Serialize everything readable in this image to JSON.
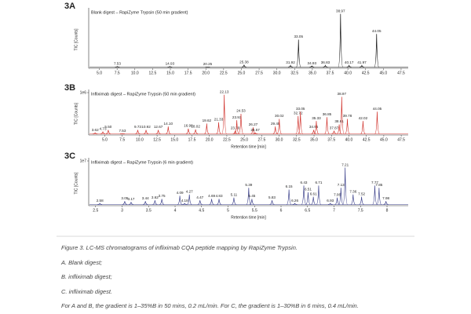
{
  "chart_data": [
    {
      "type": "line",
      "panel": "3A",
      "title": "Blank digest – RapiZyme Trypsin (50 min gradient)",
      "y_label": "TIC [Counts]",
      "color": "#111111",
      "xlim": [
        3.5,
        48.5
      ],
      "ylim": [
        0,
        1000000
      ],
      "xticks": [
        {
          "value": 5,
          "label": "5.0"
        },
        7.5,
        {
          "value": 10,
          "label": "10.0"
        },
        12.5,
        {
          "value": 15,
          "label": "15.0"
        },
        17.5,
        {
          "value": 20,
          "label": "20.0"
        },
        22.5,
        {
          "value": 25,
          "label": "25.0"
        },
        27.5,
        {
          "value": 30,
          "label": "30.0"
        },
        32.5,
        {
          "value": 35,
          "label": "35.0"
        },
        37.5,
        {
          "value": 40,
          "label": "40.0"
        },
        42.5,
        {
          "value": 45,
          "label": "45.0"
        },
        47.5
      ],
      "x": [
        7.53,
        14.93,
        20.25,
        25.38,
        31.92,
        33.05,
        34.93,
        36.83,
        38.97,
        40.17,
        41.97,
        44.05
      ],
      "values": [
        30000,
        30000,
        20000,
        60000,
        50000,
        500000,
        40000,
        50000,
        950000,
        50000,
        50000,
        600000
      ]
    },
    {
      "type": "line",
      "panel": "3B",
      "title": "Infliximab digest – RapiZyme Trypsin (50 min gradient)",
      "y_label": "TIC [Counts]",
      "x_label": "Retention time [min]",
      "color": "#d0302a",
      "xlim": [
        2.7,
        48.5
      ],
      "ylim": [
        0,
        1000000
      ],
      "yticks": [
        {
          "value": 1000000,
          "label": "1e6"
        }
      ],
      "xticks": [
        {
          "value": 5,
          "label": "5.0"
        },
        7.5,
        {
          "value": 10,
          "label": "10.0"
        },
        12.5,
        {
          "value": 15,
          "label": "15.0"
        },
        17.5,
        {
          "value": 20,
          "label": "20.0"
        },
        22.5,
        {
          "value": 25,
          "label": "25.0"
        },
        27.5,
        {
          "value": 30,
          "label": "30.0"
        },
        32.5,
        {
          "value": 35,
          "label": "35.0"
        },
        37.5,
        {
          "value": 40,
          "label": "40.0"
        },
        42.5,
        {
          "value": 45,
          "label": "45.0"
        },
        47.5
      ],
      "x": [
        3.62,
        4.73,
        5.5,
        7.53,
        9.73,
        10.92,
        12.67,
        14.1,
        16.98,
        18.02,
        19.62,
        21.33,
        22.13,
        23.7,
        23.93,
        24.53,
        26.27,
        26.57,
        29.45,
        30.02,
        32.72,
        33.05,
        34.95,
        35.33,
        36.85,
        37.87,
        38.61,
        38.97,
        39.78,
        42.02,
        44.05
      ],
      "x_labels": [
        "3.62",
        "4.73",
        "5.50",
        "7.53",
        "9.73",
        "10.92",
        "12.67",
        "14.10",
        "16.98",
        "18.02",
        "19.62",
        "21.33",
        "22.13",
        "23.70",
        "23.93",
        "24.53",
        "26.27",
        "26.57",
        "29.45",
        "30.02",
        "32.72",
        "33.05",
        "34.95",
        "35.33",
        "36.85",
        "37.87",
        "38.61",
        "38.97",
        "39.78",
        "42.02",
        "44.05"
      ],
      "values": [
        50000,
        80000,
        120000,
        30000,
        120000,
        120000,
        120000,
        200000,
        150000,
        130000,
        270000,
        300000,
        950000,
        100000,
        350000,
        500000,
        180000,
        50000,
        200000,
        380000,
        450000,
        550000,
        120000,
        330000,
        420000,
        100000,
        250000,
        900000,
        380000,
        330000,
        550000
      ]
    },
    {
      "type": "line",
      "panel": "3C",
      "title": "Infliximab digest – RapiZyme Trypsin (6 min gradient)",
      "y_label": "TIC [Counts]",
      "x_label": "Retention time [min]",
      "color": "#3a3f8a",
      "xlim": [
        2.37,
        8.4
      ],
      "ylim": [
        0,
        10000000
      ],
      "yticks": [
        {
          "value": 10000000,
          "label": "1e7"
        }
      ],
      "xticks": [
        2.5,
        3,
        3.5,
        4,
        4.5,
        5,
        5.5,
        6,
        6.5,
        7,
        7.5,
        8
      ],
      "x": [
        2.58,
        3.05,
        3.17,
        3.44,
        3.62,
        3.75,
        4.09,
        4.18,
        4.27,
        4.47,
        4.69,
        4.83,
        5.11,
        5.39,
        5.45,
        5.83,
        6.15,
        6.26,
        6.43,
        6.51,
        6.61,
        6.71,
        6.93,
        7.06,
        7.13,
        7.21,
        7.36,
        7.52,
        7.77,
        7.85,
        7.98
      ],
      "values": [
        500000,
        1000000,
        800000,
        1000000,
        1200000,
        1500000,
        2200000,
        500000,
        2500000,
        1200000,
        1500000,
        1500000,
        1800000,
        4000000,
        1500000,
        1200000,
        3600000,
        500000,
        4500000,
        3000000,
        2000000,
        4500000,
        500000,
        1800000,
        4000000,
        8500000,
        2500000,
        2000000,
        4500000,
        4000000,
        1000000
      ]
    }
  ],
  "caption": {
    "title": "Figure 3. LC-MS chromatograms of infliximab CQA peptide mapping by RapiZyme Trypsin.",
    "items": [
      "A. Blank digest;",
      "B. infliximab digest;",
      "C. infliximab digest."
    ],
    "note": "For A and B, the gradient is 1–35%B in 50 mins, 0.2 mL/min. For C, the gradient is 1–30%B in 6 mins, 0.4 mL/min."
  }
}
